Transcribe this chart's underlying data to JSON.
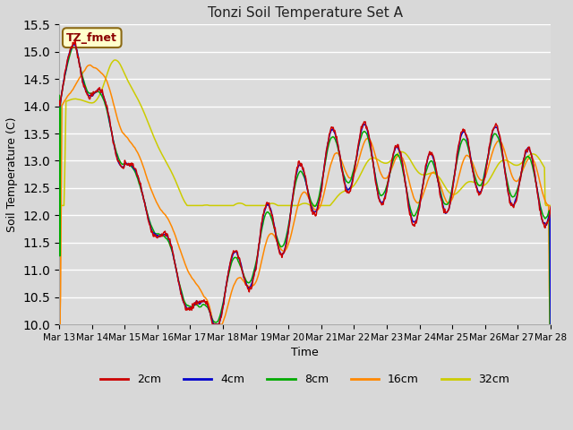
{
  "title": "Tonzi Soil Temperature Set A",
  "xlabel": "Time",
  "ylabel": "Soil Temperature (C)",
  "ylim": [
    10.0,
    15.5
  ],
  "yticks": [
    10.0,
    10.5,
    11.0,
    11.5,
    12.0,
    12.5,
    13.0,
    13.5,
    14.0,
    14.5,
    15.0,
    15.5
  ],
  "colors": {
    "2cm": "#cc0000",
    "4cm": "#0000cc",
    "8cm": "#00aa00",
    "16cm": "#ff8800",
    "32cm": "#cccc00"
  },
  "legend_label": "TZ_fmet",
  "fig_bg": "#d8d8d8",
  "plot_bg": "#dcdcdc",
  "grid_color": "#ffffff",
  "xtick_labels": [
    "Mar 13",
    "Mar 14",
    "Mar 15",
    "Mar 16",
    "Mar 17",
    "Mar 18",
    "Mar 19",
    "Mar 20",
    "Mar 21",
    "Mar 22",
    "Mar 23",
    "Mar 24",
    "Mar 25",
    "Mar 26",
    "Mar 27",
    "Mar 28"
  ]
}
